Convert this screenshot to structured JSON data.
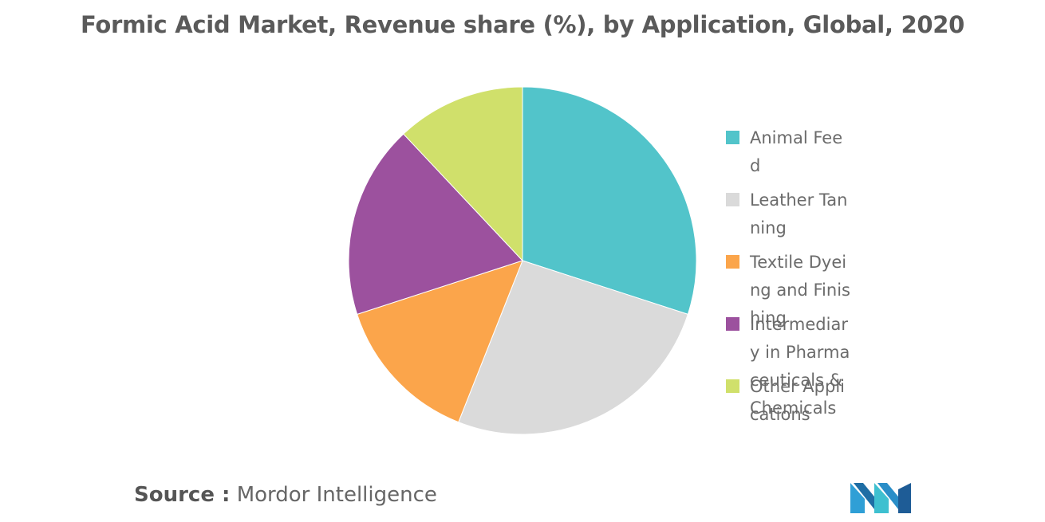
{
  "title": "Formic Acid Market, Revenue share (%), by Application, Global, 2020",
  "source": {
    "prefix": "Source :",
    "text": "Mordor Intelligence"
  },
  "logo_icon": "mordor-intelligence-logo",
  "chart_data": {
    "type": "pie",
    "title": "Formic Acid Market, Revenue share (%), by Application, Global, 2020",
    "start_angle_deg": 0,
    "direction": "clockwise",
    "legend_position": "right",
    "slices": [
      {
        "label": "Animal Feed",
        "value": 30,
        "color": "#52c4ca"
      },
      {
        "label": "Leather Tanning",
        "value": 26,
        "color": "#dadada"
      },
      {
        "label": "Textile Dyeing and Finishing",
        "value": 14,
        "color": "#fba54b"
      },
      {
        "label": "Intermediary in Pharmaceuticals & Chemicals",
        "value": 18,
        "color": "#9c519e"
      },
      {
        "label": "Other Applications",
        "value": 12,
        "color": "#d0e06b"
      }
    ]
  }
}
